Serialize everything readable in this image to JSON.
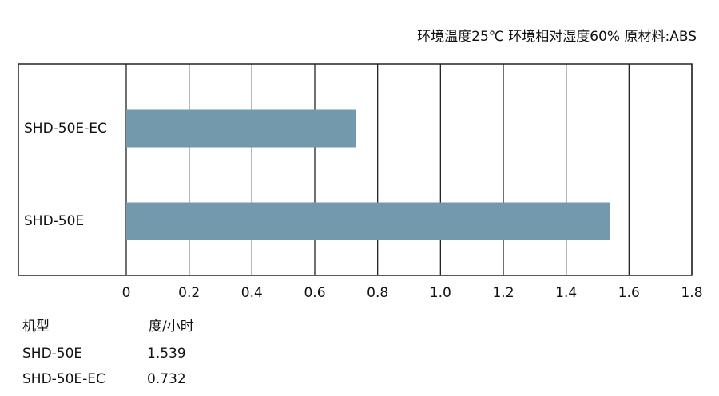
{
  "chart_data": {
    "type": "bar",
    "orientation": "horizontal",
    "subtitle": "环境温度25℃  环境相对湿度60%  原材料:ABS",
    "categories": [
      "SHD-50E-EC",
      "SHD-50E"
    ],
    "values": [
      0.732,
      1.539
    ],
    "color": "#7399ad",
    "xlim": [
      0,
      1.8
    ],
    "xticks": [
      0,
      0.2,
      0.4,
      0.6,
      0.8,
      {
        "value": 1,
        "label": "1.0"
      },
      1.2,
      1.4,
      1.6,
      1.8
    ],
    "grid": true
  },
  "table": {
    "header": [
      "机型",
      "度/小时"
    ],
    "rows": [
      [
        "SHD-50E",
        1.539
      ],
      [
        "SHD-50E-EC",
        0.732
      ]
    ]
  }
}
